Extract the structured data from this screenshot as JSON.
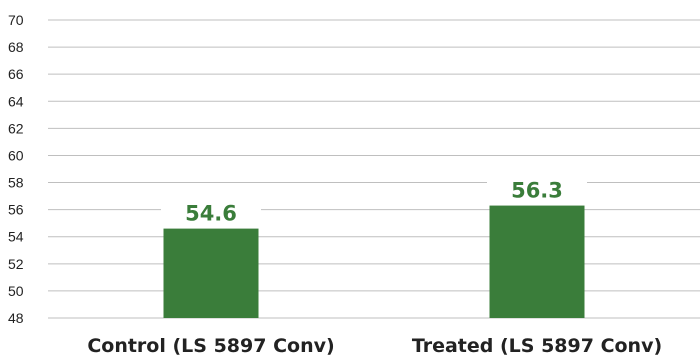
{
  "chart_data": {
    "type": "bar",
    "categories": [
      "Control (LS 5897 Conv)",
      "Treated (LS 5897 Conv)"
    ],
    "values": [
      54.6,
      56.3
    ],
    "data_labels": [
      "54.6",
      "56.3"
    ],
    "ylim": [
      48,
      70
    ],
    "yticks": [
      48,
      50,
      52,
      54,
      56,
      58,
      60,
      62,
      64,
      66,
      68,
      70
    ],
    "grid": true,
    "title": "",
    "xlabel": "",
    "ylabel": "",
    "colors": {
      "bar": "#3a7d3a",
      "data_label": "#3a7d3a",
      "grid": "#bfbfbf"
    }
  }
}
